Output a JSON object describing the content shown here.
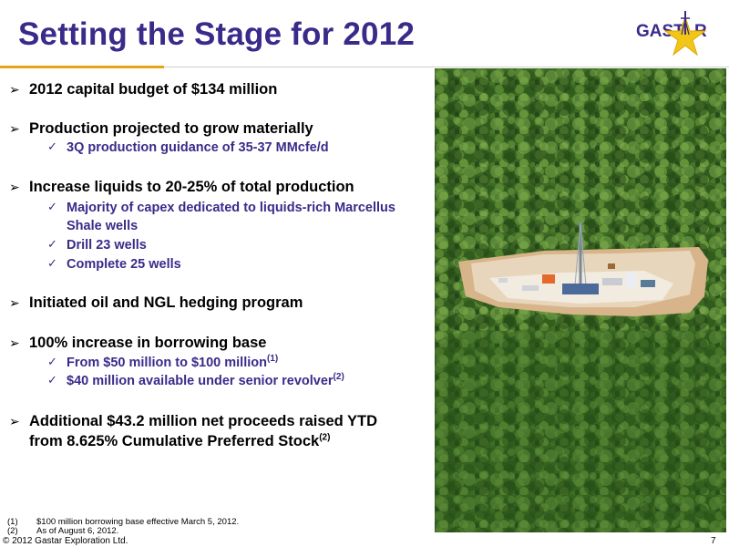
{
  "slide": {
    "title": "Setting the Stage for 2012",
    "logo_text": "GASTAR",
    "page_number": "7",
    "copyright": "© 2012 Gastar Exploration Ltd."
  },
  "bullets": [
    {
      "text": "2012 capital budget of $134 million",
      "subs": []
    },
    {
      "text": "Production projected to grow materially",
      "subs": [
        "3Q production guidance of 35-37 MMcfe/d"
      ]
    },
    {
      "text": "Increase liquids to 20-25% of total production",
      "subs": [
        "Majority of capex dedicated to liquids-rich Marcellus",
        "Shale wells",
        "Drill 23 wells",
        "Complete 25 wells"
      ]
    },
    {
      "text": "Initiated oil and NGL hedging program",
      "subs": []
    },
    {
      "text": "100% increase in borrowing base",
      "subs": [
        "From $50 million to $100 million",
        "$40 million available under senior revolver"
      ]
    },
    {
      "text": "Additional $43.2 million net proceeds raised YTD",
      "line2": "from 8.625% Cumulative Preferred Stock",
      "subs": []
    }
  ],
  "superscripts": {
    "s1": "(1)",
    "s2": "(2)",
    "s3": "(2)"
  },
  "footnotes": [
    {
      "num": "(1)",
      "text": "$100 million borrowing base effective March 5, 2012."
    },
    {
      "num": "(2)",
      "text": "As of August 6, 2012."
    }
  ],
  "colors": {
    "title": "#3b2a8a",
    "accent_gold": "#e8a317",
    "sub_bullet": "#3b2a8a"
  },
  "icons": {
    "bullet": "arrow-right-icon",
    "sub_bullet": "checkmark-icon",
    "logo": "gastar-star-logo"
  }
}
